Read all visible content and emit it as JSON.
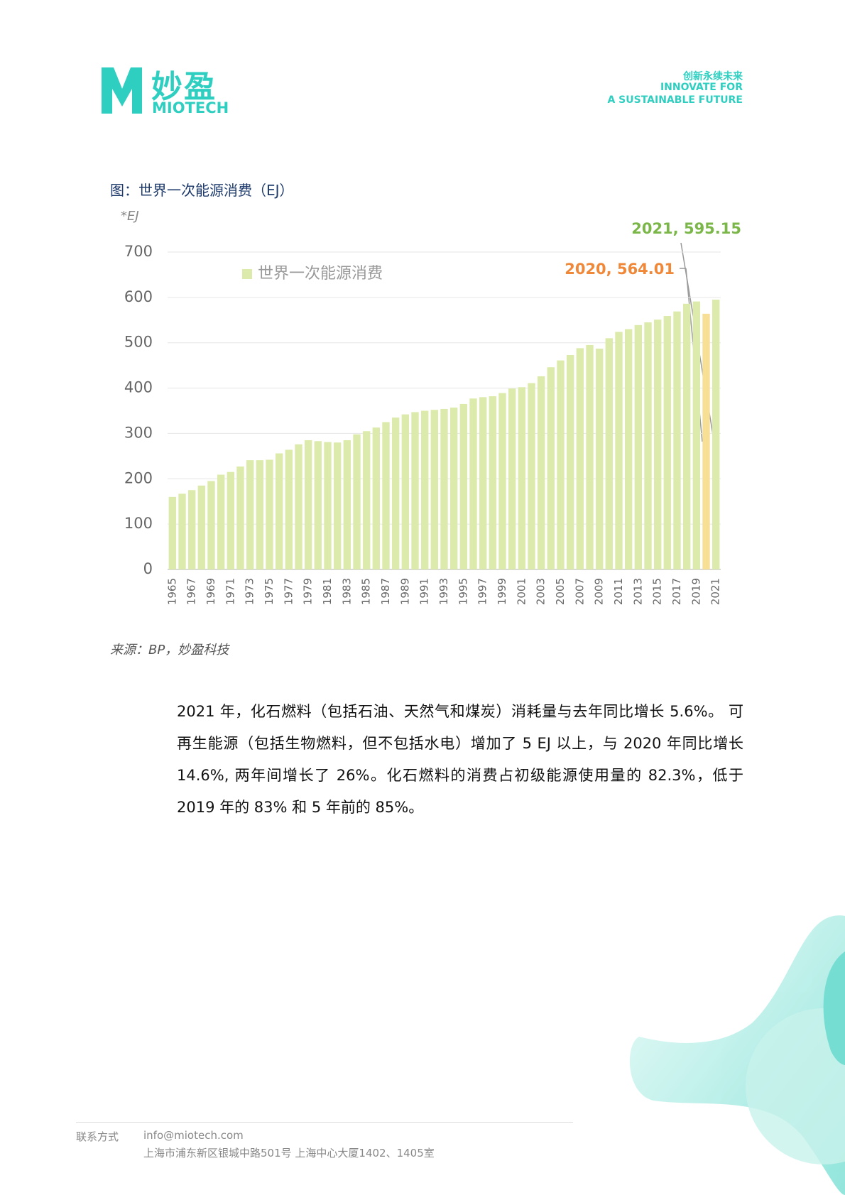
{
  "header": {
    "logo_cn": "妙盈",
    "logo_en": "MIOTECH",
    "tagline": [
      "创新永续未来",
      "INNOVATE FOR",
      "A SUSTAINABLE FUTURE"
    ]
  },
  "chart_data": {
    "type": "bar",
    "title": "图：世界一次能源消费（EJ）",
    "y_unit": "*EJ",
    "categories": [
      "1965",
      null,
      "1967",
      null,
      "1969",
      null,
      "1971",
      null,
      "1973",
      null,
      "1975",
      null,
      "1977",
      null,
      "1979",
      null,
      "1981",
      null,
      "1983",
      null,
      "1985",
      null,
      "1987",
      null,
      "1989",
      null,
      "1991",
      null,
      "1993",
      null,
      "1995",
      null,
      "1997",
      null,
      "1999",
      null,
      "2001",
      null,
      "2003",
      null,
      "2005",
      null,
      "2007",
      null,
      "2009",
      null,
      "2011",
      null,
      "2013",
      null,
      "2015",
      null,
      "2017",
      null,
      "2019",
      null,
      "2021"
    ],
    "series": [
      {
        "name": "世界一次能源消费",
        "color": "#dcebab",
        "values": [
          160,
          167,
          175,
          185,
          195,
          209,
          215,
          227,
          241,
          241,
          242,
          256,
          264,
          276,
          285,
          283,
          281,
          280,
          285,
          298,
          305,
          313,
          325,
          335,
          342,
          347,
          350,
          352,
          354,
          357,
          365,
          377,
          380,
          382,
          389,
          399,
          402,
          411,
          426,
          446,
          461,
          473,
          488,
          495,
          487,
          510,
          524,
          530,
          539,
          545,
          551,
          559,
          569,
          586,
          591,
          564.01,
          595.15
        ],
        "colors": [
          "#dcebab",
          "#dcebab",
          "#dcebab",
          "#dcebab",
          "#dcebab",
          "#dcebab",
          "#dcebab",
          "#dcebab",
          "#dcebab",
          "#dcebab",
          "#dcebab",
          "#dcebab",
          "#dcebab",
          "#dcebab",
          "#dcebab",
          "#dcebab",
          "#dcebab",
          "#dcebab",
          "#dcebab",
          "#dcebab",
          "#dcebab",
          "#dcebab",
          "#dcebab",
          "#dcebab",
          "#dcebab",
          "#dcebab",
          "#dcebab",
          "#dcebab",
          "#dcebab",
          "#dcebab",
          "#dcebab",
          "#dcebab",
          "#dcebab",
          "#dcebab",
          "#dcebab",
          "#dcebab",
          "#dcebab",
          "#dcebab",
          "#dcebab",
          "#dcebab",
          "#dcebab",
          "#dcebab",
          "#dcebab",
          "#dcebab",
          "#dcebab",
          "#dcebab",
          "#dcebab",
          "#dcebab",
          "#dcebab",
          "#dcebab",
          "#dcebab",
          "#dcebab",
          "#dcebab",
          "#dcebab",
          "#dcebab",
          "#f8df96",
          "#dcebab"
        ]
      }
    ],
    "ylim": [
      0,
      700
    ],
    "yticks": [
      0,
      100,
      200,
      300,
      400,
      500,
      600,
      700
    ],
    "grid": true,
    "legend": "top-left",
    "annotations": [
      {
        "text": "2021, 595.15",
        "color": "#7ab648"
      },
      {
        "text": "2020, 564.01",
        "color": "#f0883a"
      }
    ]
  },
  "source": "来源：BP，妙盈科技",
  "paragraph": "2021 年，化石燃料（包括石油、天然气和煤炭）消耗量与去年同比增长 5.6%。 可再生能源（包括生物燃料，但不包括水电）增加了 5 EJ 以上，与 2020 年同比增长 14.6%, 两年间增长了 26%。化石燃料的消费占初级能源使用量的 82.3%，低于 2019 年的 83% 和 5 年前的 85%。",
  "footer": {
    "contact_label": "联系方式",
    "email": "info@miotech.com",
    "address": "上海市浦东新区银城中路501号 上海中心大厦1402、1405室"
  }
}
